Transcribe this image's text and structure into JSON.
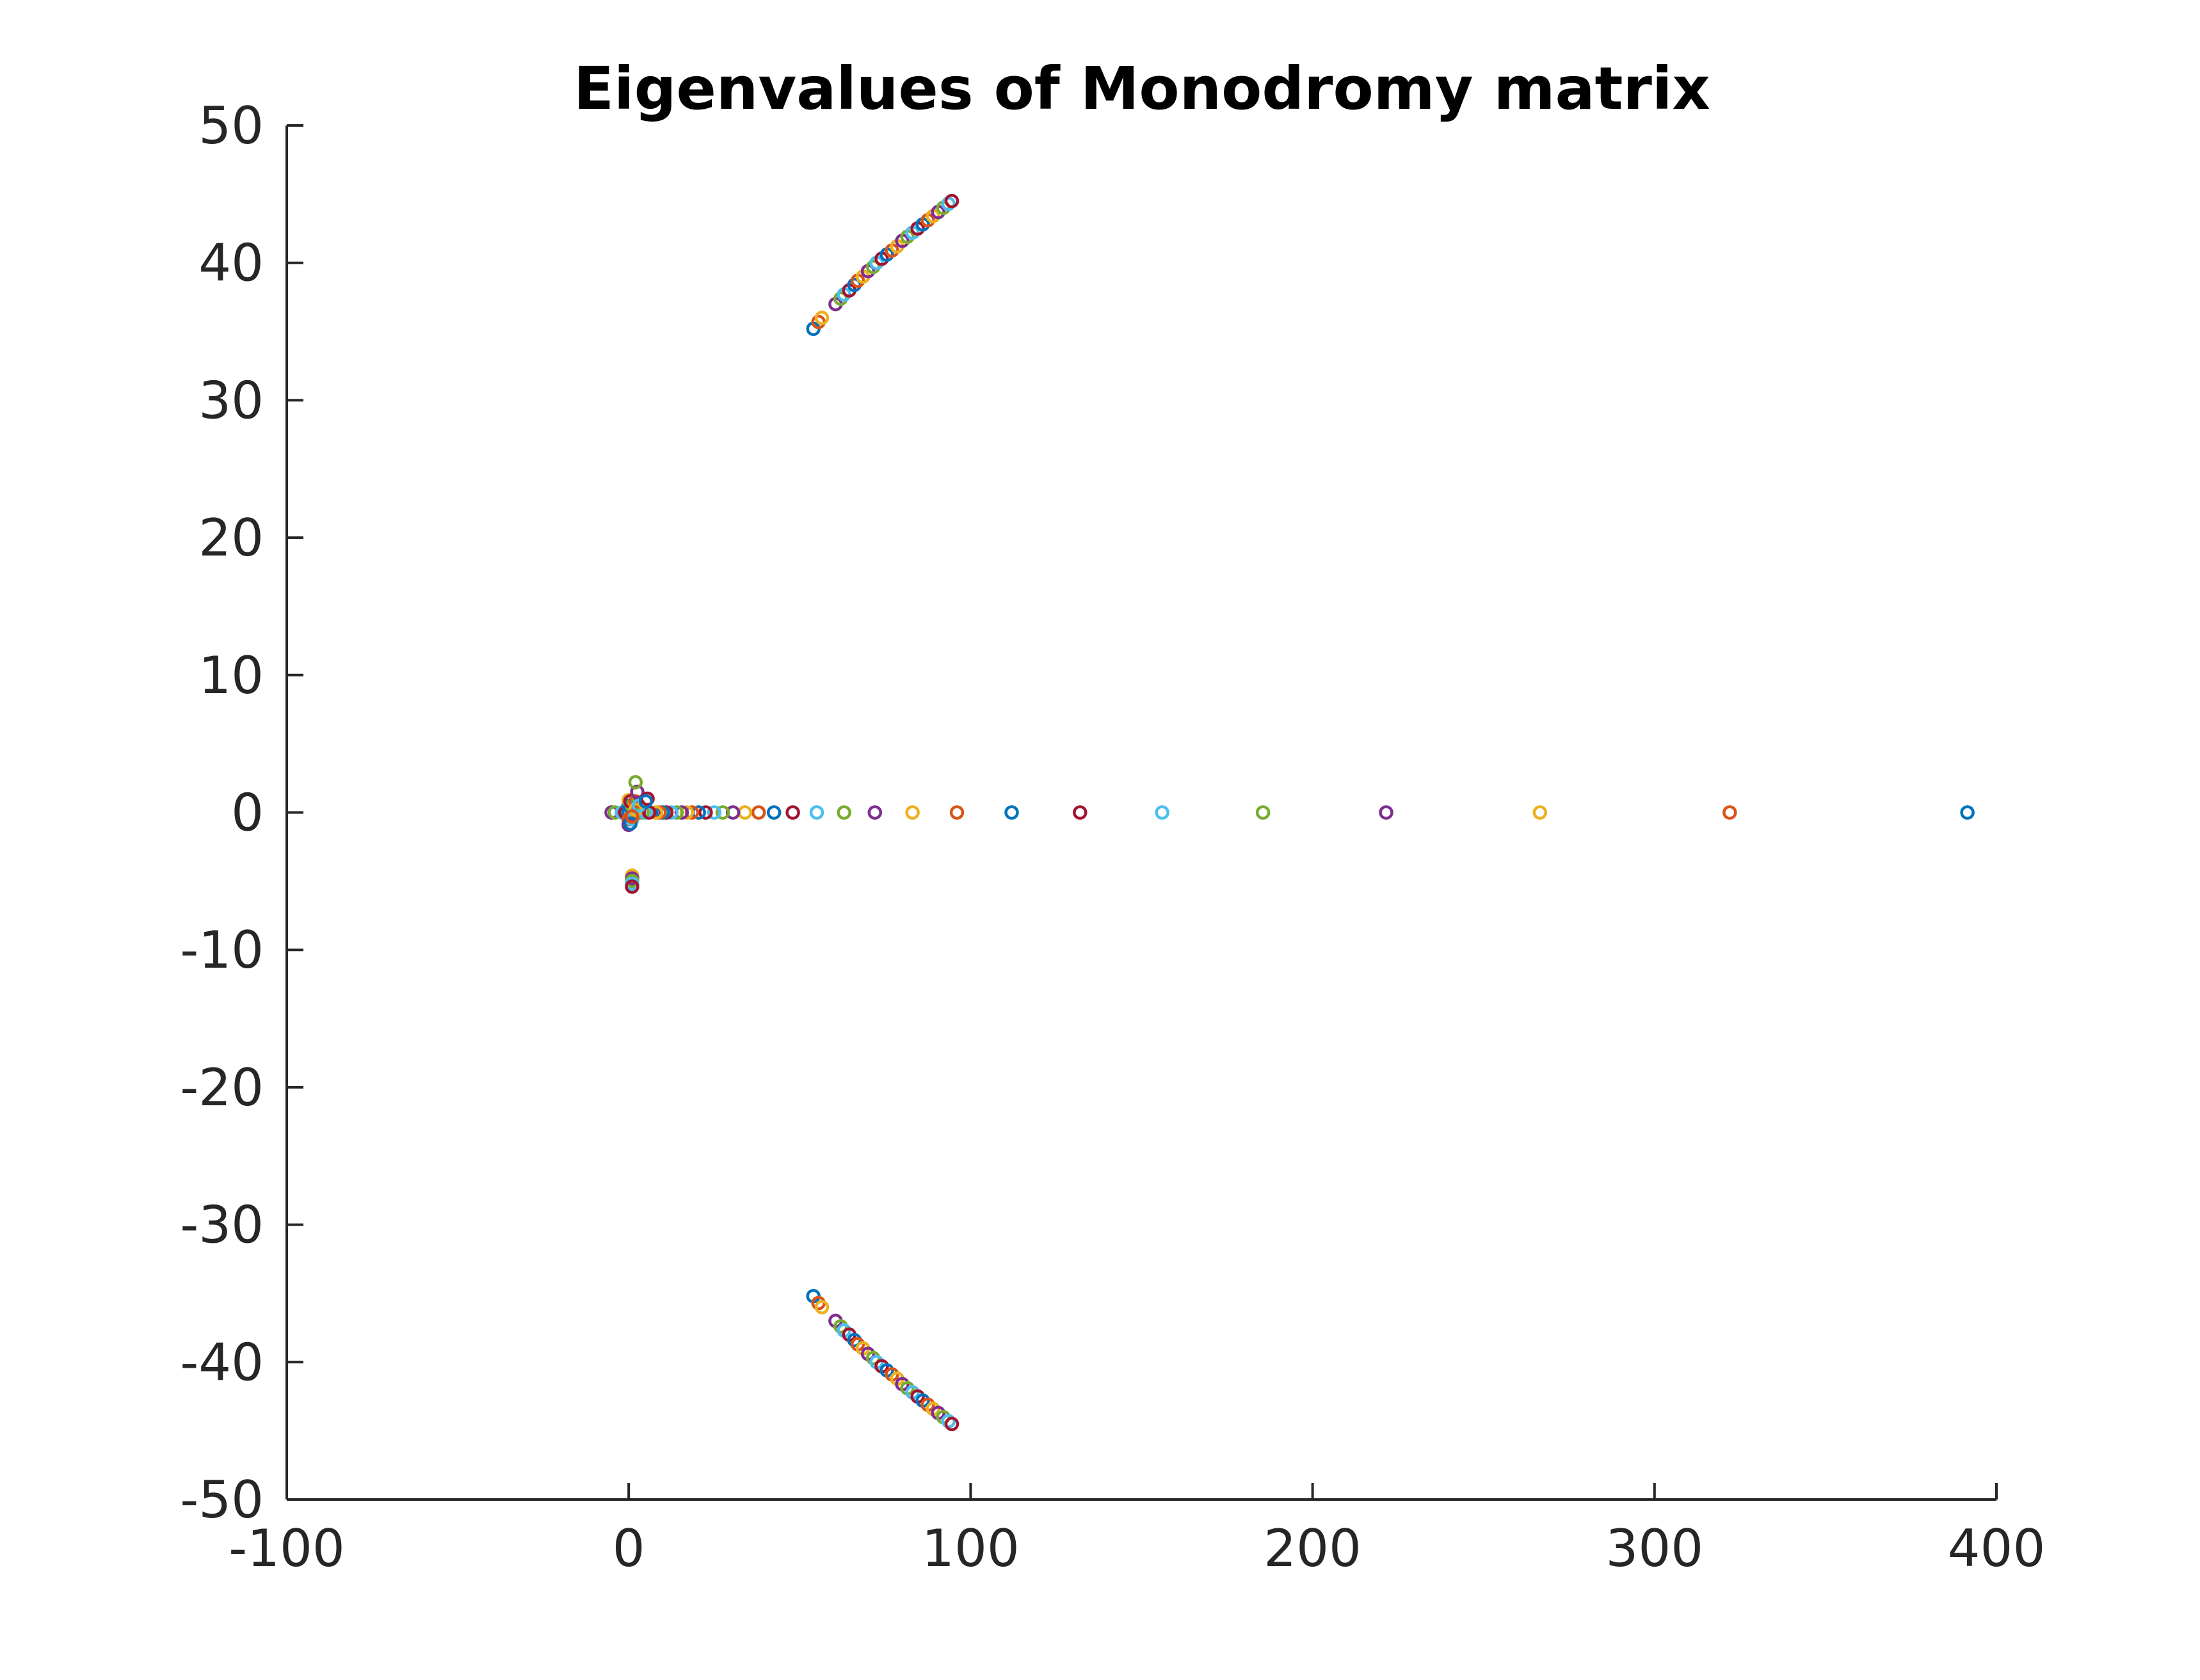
{
  "chart_data": {
    "type": "scatter",
    "title": "Eigenvalues of Monodromy matrix",
    "xlabel": "",
    "ylabel": "",
    "xlim": [
      -100,
      400
    ],
    "ylim": [
      -50,
      50
    ],
    "x_ticks": [
      -100,
      0,
      100,
      200,
      300,
      400
    ],
    "y_ticks": [
      50,
      40,
      30,
      20,
      10,
      0,
      -10,
      -20,
      -30,
      -40,
      -50
    ],
    "x_tick_labels": [
      "-100",
      "0",
      "100",
      "200",
      "300",
      "400"
    ],
    "y_tick_labels": [
      "50",
      "40",
      "30",
      "20",
      "10",
      "0",
      "-10",
      "-20",
      "-30",
      "-40",
      "-50"
    ],
    "grid": false,
    "legend": "none",
    "marker": "open-circle",
    "color_cycle": [
      "#0072BD",
      "#D95319",
      "#EDB120",
      "#7E2F8E",
      "#77AC30",
      "#4DBEEE",
      "#A2142F"
    ],
    "points": [
      [
        391.5,
        0
      ],
      [
        322,
        0
      ],
      [
        266.5,
        0
      ],
      [
        221.5,
        0
      ],
      [
        185.5,
        0
      ],
      [
        156,
        0
      ],
      [
        132,
        0
      ],
      [
        112,
        0
      ],
      [
        96,
        0
      ],
      [
        83,
        0
      ],
      [
        72,
        0
      ],
      [
        63,
        0
      ],
      [
        55,
        0
      ],
      [
        48,
        0
      ],
      [
        42.5,
        0
      ],
      [
        38,
        0
      ],
      [
        34,
        0
      ],
      [
        30.5,
        0
      ],
      [
        27.5,
        0
      ],
      [
        25,
        0
      ],
      [
        22.5,
        0
      ],
      [
        20.5,
        0
      ],
      [
        18.5,
        0
      ],
      [
        17,
        0
      ],
      [
        15.5,
        0
      ],
      [
        14,
        0
      ],
      [
        12.5,
        0
      ],
      [
        11,
        0
      ],
      [
        10,
        0
      ],
      [
        9,
        0
      ],
      [
        8,
        0
      ],
      [
        -5,
        0
      ],
      [
        -4,
        0
      ],
      [
        -2,
        0
      ],
      [
        -1,
        0
      ],
      [
        0,
        0
      ],
      [
        1,
        0
      ],
      [
        2,
        0
      ],
      [
        3,
        0
      ],
      [
        4,
        0
      ],
      [
        5,
        0
      ],
      [
        6,
        0
      ],
      [
        0,
        0.5
      ],
      [
        0,
        -0.5
      ],
      [
        0,
        0.9
      ],
      [
        0,
        -0.9
      ],
      [
        1,
        0.5
      ],
      [
        1,
        -0.5
      ],
      [
        0.5,
        0.8
      ],
      [
        0.5,
        -0.8
      ],
      [
        2,
        0.8
      ],
      [
        2,
        0.2
      ],
      [
        2.5,
        1.5
      ],
      [
        2,
        2.2
      ],
      [
        3,
        0.5
      ],
      [
        5.5,
        1.0
      ],
      [
        5,
        0.8
      ],
      [
        1,
        -0.3
      ],
      [
        1,
        -4.6
      ],
      [
        1,
        -4.8
      ],
      [
        1,
        -5.0
      ],
      [
        1,
        -5.2
      ],
      [
        1,
        -5.4
      ],
      [
        54,
        35.2
      ],
      [
        55.5,
        35.7
      ],
      [
        56.5,
        36.0
      ],
      [
        60.5,
        37.0
      ],
      [
        62,
        37.4
      ],
      [
        63,
        37.7
      ],
      [
        64.5,
        38.0
      ],
      [
        66,
        38.4
      ],
      [
        67,
        38.7
      ],
      [
        68.5,
        39.0
      ],
      [
        70,
        39.4
      ],
      [
        71.5,
        39.7
      ],
      [
        72.5,
        40.0
      ],
      [
        74,
        40.3
      ],
      [
        75.5,
        40.6
      ],
      [
        77,
        40.9
      ],
      [
        78.5,
        41.2
      ],
      [
        80,
        41.6
      ],
      [
        81.5,
        41.9
      ],
      [
        83,
        42.2
      ],
      [
        84.5,
        42.5
      ],
      [
        86,
        42.8
      ],
      [
        87.5,
        43.1
      ],
      [
        89,
        43.4
      ],
      [
        90.5,
        43.7
      ],
      [
        92,
        44.0
      ],
      [
        93.5,
        44.3
      ],
      [
        94.5,
        44.5
      ],
      [
        54,
        -35.2
      ],
      [
        55.5,
        -35.7
      ],
      [
        56.5,
        -36.0
      ],
      [
        60.5,
        -37.0
      ],
      [
        62,
        -37.4
      ],
      [
        63,
        -37.7
      ],
      [
        64.5,
        -38.0
      ],
      [
        66,
        -38.4
      ],
      [
        67,
        -38.7
      ],
      [
        68.5,
        -39.0
      ],
      [
        70,
        -39.4
      ],
      [
        71.5,
        -39.7
      ],
      [
        72.5,
        -40.0
      ],
      [
        74,
        -40.3
      ],
      [
        75.5,
        -40.6
      ],
      [
        77,
        -40.9
      ],
      [
        78.5,
        -41.2
      ],
      [
        80,
        -41.6
      ],
      [
        81.5,
        -41.9
      ],
      [
        83,
        -42.2
      ],
      [
        84.5,
        -42.5
      ],
      [
        86,
        -42.8
      ],
      [
        87.5,
        -43.1
      ],
      [
        89,
        -43.4
      ],
      [
        90.5,
        -43.7
      ],
      [
        92,
        -44.0
      ],
      [
        93.5,
        -44.3
      ],
      [
        94.5,
        -44.5
      ]
    ]
  }
}
